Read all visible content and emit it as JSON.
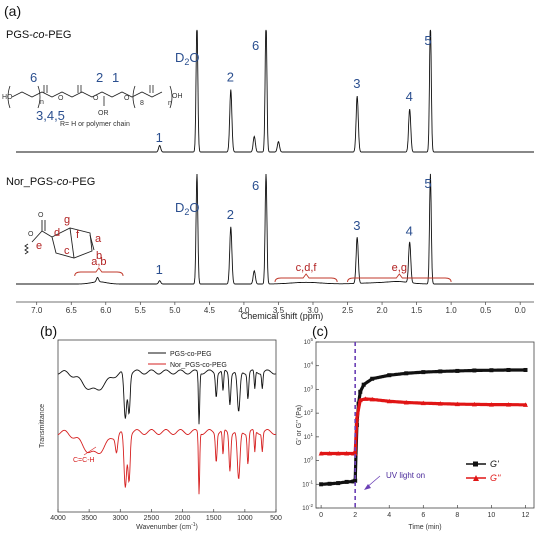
{
  "chart_data": [
    {
      "panel": "(a)",
      "type": "line",
      "xlabel": "Chemical shift (ppm)",
      "xlim": [
        7.3,
        -0.2
      ],
      "x_reversed": true,
      "x_ticks": [
        "7.0",
        "6.5",
        "6.0",
        "5.5",
        "5.0",
        "4.5",
        "4.0",
        "3.5",
        "3.0",
        "2.5",
        "2.0",
        "1.5",
        "1.0",
        "0.5",
        "0.0"
      ],
      "series": [
        {
          "name": "PGS-co-PEG",
          "peaks": [
            {
              "ppm": 5.22,
              "h": 0.05,
              "label": "1"
            },
            {
              "ppm": 4.68,
              "h": 1.0,
              "label": "D2O"
            },
            {
              "ppm": 4.19,
              "h": 0.48,
              "label": "2"
            },
            {
              "ppm": 3.85,
              "h": 0.12,
              "label": ""
            },
            {
              "ppm": 3.68,
              "h": 1.0,
              "label": "6"
            },
            {
              "ppm": 3.5,
              "h": 0.08,
              "label": ""
            },
            {
              "ppm": 2.36,
              "h": 0.43,
              "label": "3"
            },
            {
              "ppm": 1.6,
              "h": 0.33,
              "label": "4"
            },
            {
              "ppm": 1.3,
              "h": 1.0,
              "label": "5"
            }
          ],
          "structure_labels": [
            "6",
            "2",
            "1",
            "3,4,5",
            "OR",
            "R= H or polymer chain"
          ]
        },
        {
          "name": "Nor_PGS-co-PEG",
          "peaks": [
            {
              "ppm": 6.12,
              "h": 0.04,
              "label": "a,b"
            },
            {
              "ppm": 5.22,
              "h": 0.03,
              "label": "1"
            },
            {
              "ppm": 4.68,
              "h": 1.0,
              "label": "D2O"
            },
            {
              "ppm": 4.19,
              "h": 0.52,
              "label": "2"
            },
            {
              "ppm": 3.85,
              "h": 0.12,
              "label": ""
            },
            {
              "ppm": 3.68,
              "h": 1.0,
              "label": "6"
            },
            {
              "ppm": 2.36,
              "h": 0.42,
              "label": "3"
            },
            {
              "ppm": 1.6,
              "h": 0.37,
              "label": "4"
            },
            {
              "ppm": 1.3,
              "h": 1.0,
              "label": "5"
            }
          ],
          "brackets": [
            "a,b",
            "c,d,f",
            "e,g"
          ],
          "structure_labels": [
            "g",
            "d",
            "f",
            "a",
            "e",
            "c",
            "b"
          ]
        }
      ],
      "solvent_label": "D",
      "solvent_sub": "2",
      "solvent_suffix": "O"
    },
    {
      "panel": "(b)",
      "type": "line",
      "xlabel": "Wavenumber (cm",
      "xlabel_sup": "-1",
      "xlabel_end": ")",
      "ylabel": "Transmittance",
      "xlim": [
        4000,
        500
      ],
      "x_ticks": [
        "4000",
        "3500",
        "3000",
        "2500",
        "2000",
        "1500",
        "1000",
        "500"
      ],
      "series": [
        {
          "name": "PGS-co-PEG",
          "color": "#111111"
        },
        {
          "name": "Nor_PGS-co-PEG",
          "color": "#d62020"
        }
      ],
      "annotation": "C=C-H"
    },
    {
      "panel": "(c)",
      "type": "scatter",
      "xlabel": "Time (min)",
      "ylabel": "G' or G'' (Pa)",
      "xlim": [
        -0.3,
        12.5
      ],
      "ylim_log10": [
        -2,
        5
      ],
      "x_ticks": [
        "0",
        "2",
        "4",
        "6",
        "8",
        "10",
        "12"
      ],
      "y_ticks": [
        "10",
        "10",
        "10",
        "10",
        "10",
        "10",
        "10",
        "10"
      ],
      "y_tick_exps": [
        "-2",
        "-1",
        "0",
        "1",
        "2",
        "3",
        "4",
        "5"
      ],
      "uv_time": 2.0,
      "uv_label": "UV light on",
      "series": [
        {
          "name": "G'",
          "color": "#111111",
          "points": [
            [
              0,
              -1
            ],
            [
              0.5,
              -0.98
            ],
            [
              1.0,
              -0.95
            ],
            [
              1.5,
              -0.9
            ],
            [
              1.9,
              -0.88
            ],
            [
              2.0,
              -0.85
            ],
            [
              2.1,
              1.5
            ],
            [
              2.2,
              2.4
            ],
            [
              2.3,
              2.9
            ],
            [
              2.5,
              3.2
            ],
            [
              3.0,
              3.45
            ],
            [
              4.0,
              3.6
            ],
            [
              5.0,
              3.68
            ],
            [
              6.0,
              3.73
            ],
            [
              7.0,
              3.76
            ],
            [
              8.0,
              3.78
            ],
            [
              9.0,
              3.8
            ],
            [
              10.0,
              3.81
            ],
            [
              11.0,
              3.82
            ],
            [
              12.0,
              3.82
            ]
          ]
        },
        {
          "name": "G''",
          "color": "#e01515",
          "points": [
            [
              0,
              0.3
            ],
            [
              0.5,
              0.3
            ],
            [
              1.0,
              0.3
            ],
            [
              1.5,
              0.3
            ],
            [
              1.9,
              0.3
            ],
            [
              2.0,
              0.3
            ],
            [
              2.1,
              1.8
            ],
            [
              2.3,
              2.55
            ],
            [
              2.6,
              2.6
            ],
            [
              3.0,
              2.58
            ],
            [
              4.0,
              2.5
            ],
            [
              5.0,
              2.45
            ],
            [
              6.0,
              2.42
            ],
            [
              7.0,
              2.4
            ],
            [
              8.0,
              2.38
            ],
            [
              9.0,
              2.37
            ],
            [
              10.0,
              2.36
            ],
            [
              11.0,
              2.36
            ],
            [
              12.0,
              2.35
            ]
          ]
        }
      ],
      "legend": [
        "G'",
        "G''"
      ]
    }
  ]
}
